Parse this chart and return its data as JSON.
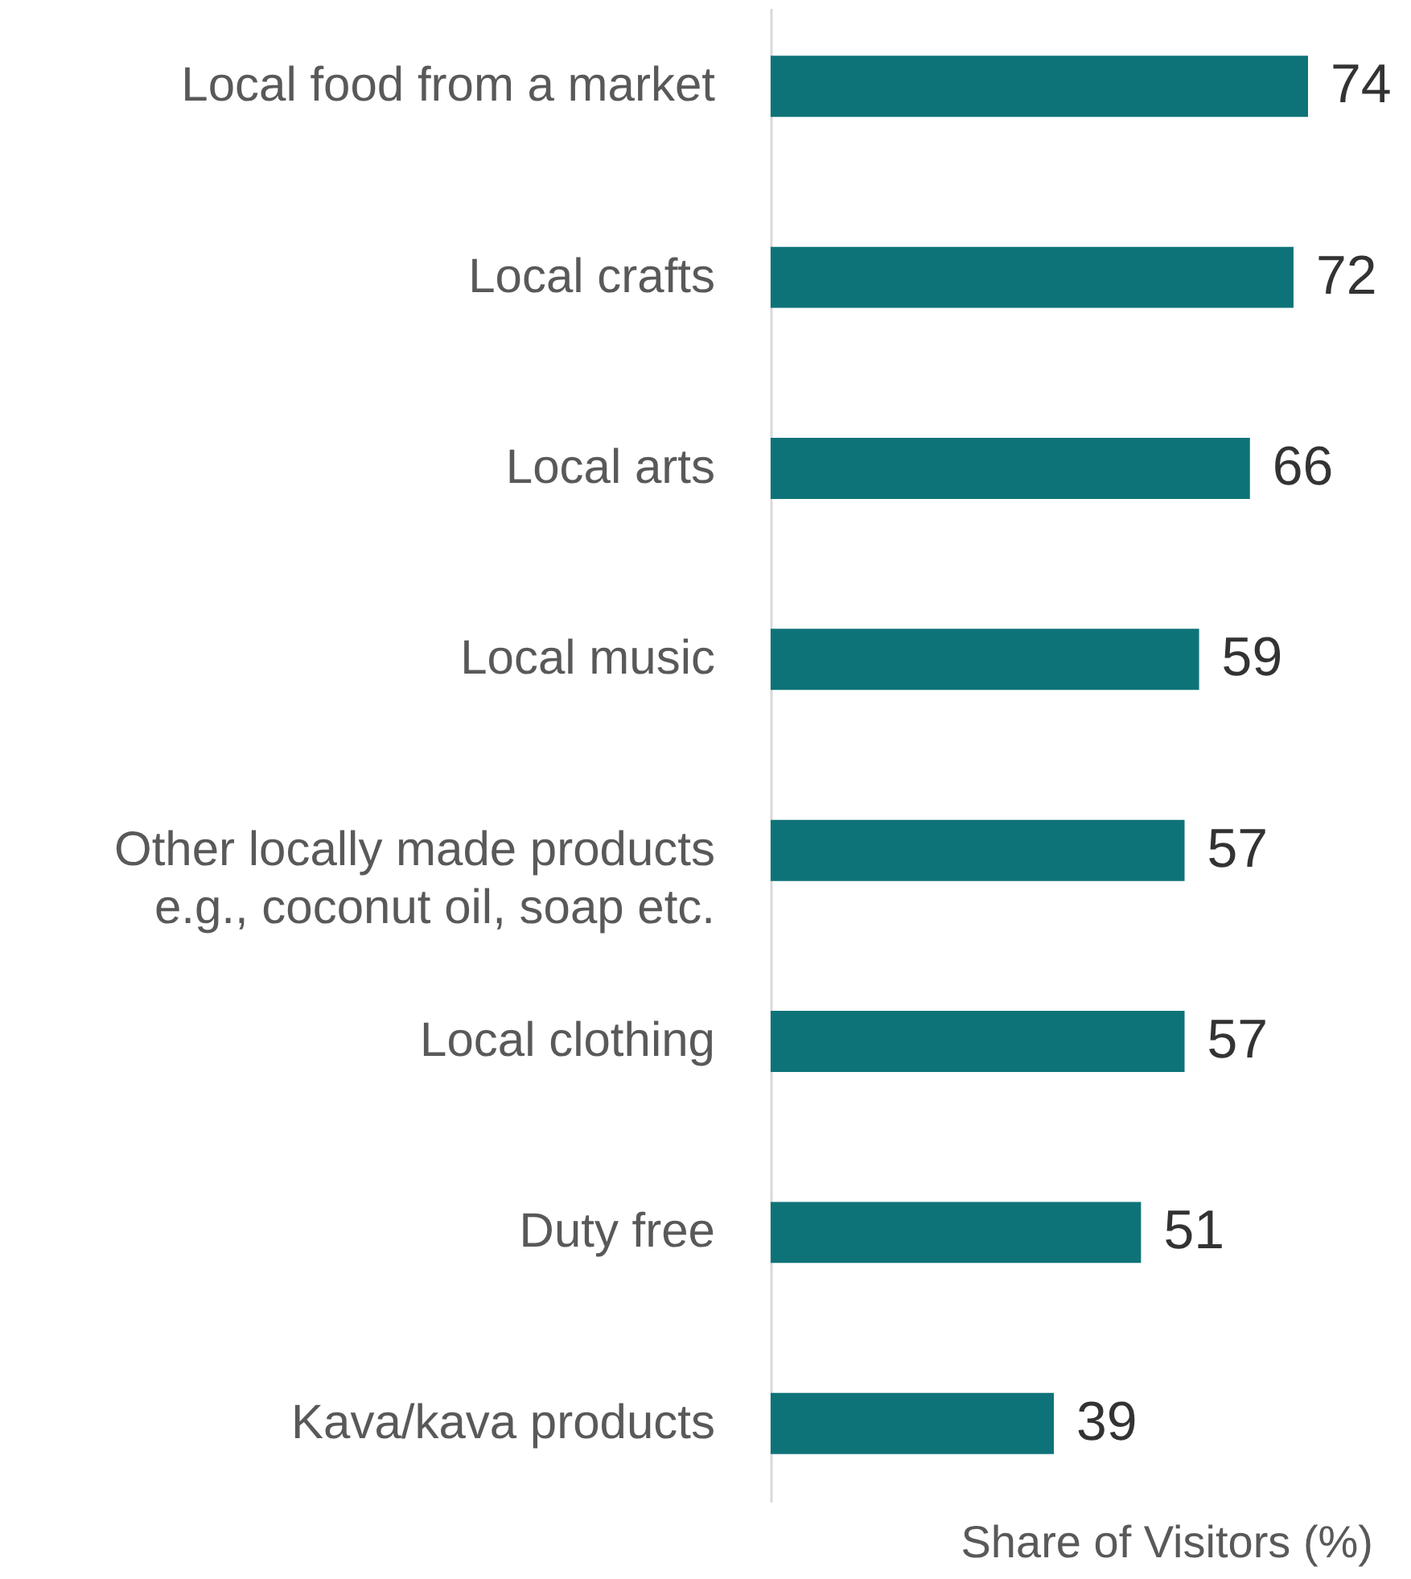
{
  "chart_data": {
    "type": "bar",
    "orientation": "horizontal",
    "xlabel": "Share of Visitors (%)",
    "categories": [
      "Local food from a market",
      "Local crafts",
      "Local arts",
      "Local music",
      "Other locally made products e.g., coconut oil, soap etc.",
      "Local clothing",
      "Duty free",
      "Kava/kava products"
    ],
    "values": [
      74,
      72,
      66,
      59,
      57,
      57,
      51,
      39
    ],
    "color": "#0e7378",
    "data_labels": true
  }
}
